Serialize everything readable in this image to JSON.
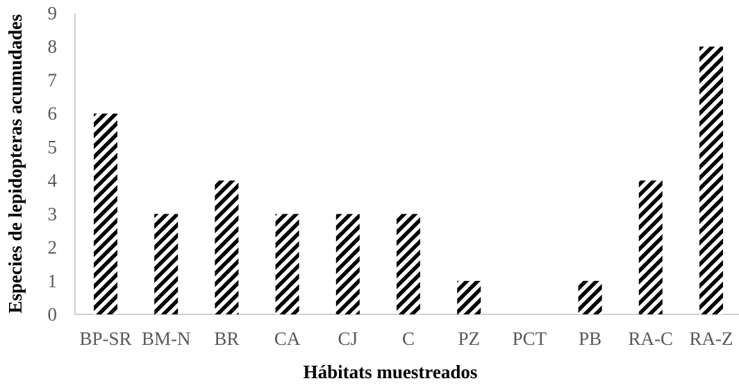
{
  "chart_data": {
    "type": "bar",
    "categories": [
      "BP-SR",
      "BM-N",
      "BR",
      "CA",
      "CJ",
      "C",
      "PZ",
      "PCT",
      "PB",
      "RA-C",
      "RA-Z"
    ],
    "values": [
      6,
      3,
      4,
      3,
      3,
      3,
      1,
      0,
      1,
      4,
      8
    ],
    "xlabel": "Hábitats muestreados",
    "ylabel": "Especies de lepidopteras acumudades",
    "ylim": [
      0,
      9
    ],
    "yticks": [
      0,
      1,
      2,
      3,
      4,
      5,
      6,
      7,
      8,
      9
    ],
    "grid": false,
    "bar_fill": "diagonal black hatch",
    "colors": {
      "bars": "#000000",
      "axis": "#bfbfbf",
      "tick_text": "#595959",
      "title_text": "#000000"
    }
  }
}
